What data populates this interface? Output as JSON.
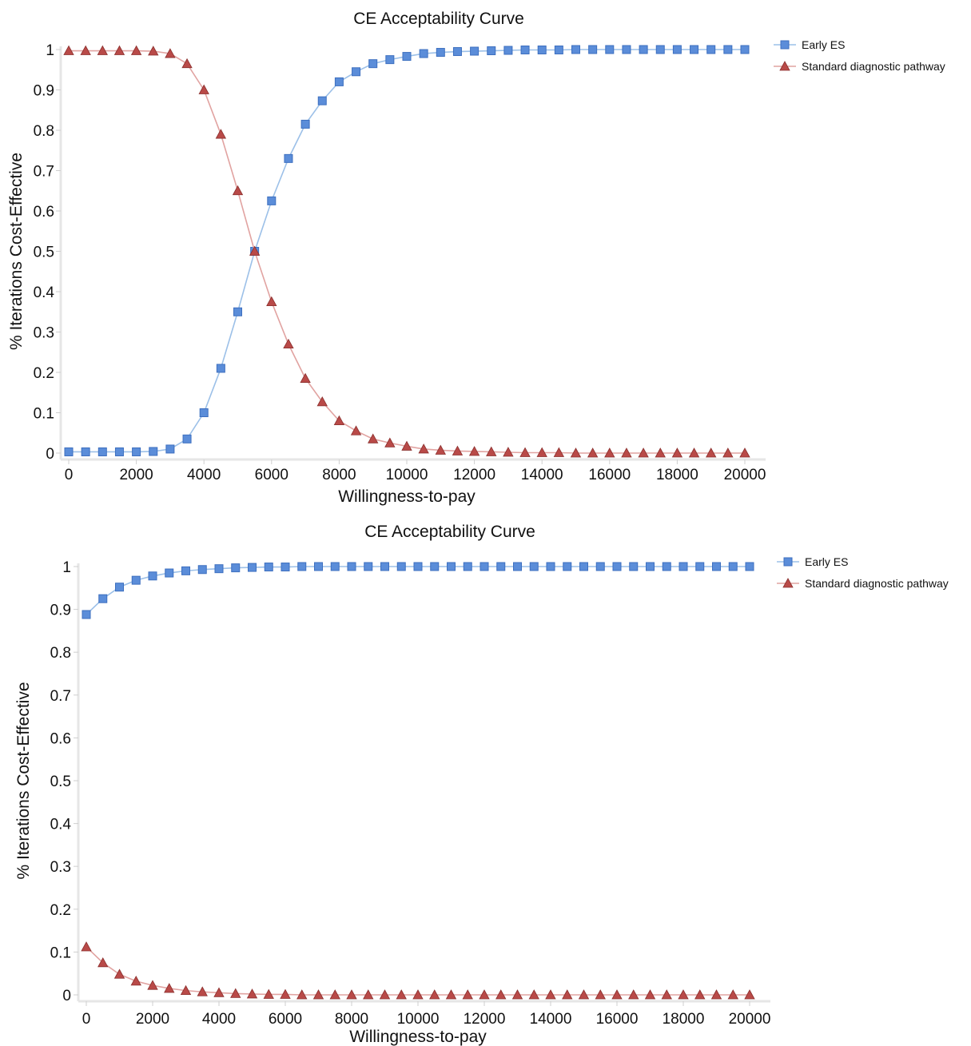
{
  "chart_data": [
    {
      "type": "line",
      "title": "CE Acceptability Curve",
      "xlabel": "Willingness-to-pay",
      "ylabel": "% Iterations Cost-Effective",
      "xlim": [
        0,
        20000
      ],
      "ylim": [
        0,
        1
      ],
      "x_ticks": [
        0,
        2000,
        4000,
        6000,
        8000,
        10000,
        12000,
        14000,
        16000,
        18000,
        20000
      ],
      "y_ticks": [
        0,
        0.1,
        0.2,
        0.3,
        0.4,
        0.5,
        0.6,
        0.7,
        0.8,
        0.9,
        1
      ],
      "y_tick_labels": [
        "0",
        "0.1",
        "0.2",
        "0.3",
        "0.4",
        "0.5",
        "0.6",
        "0.7",
        "0.8",
        "0.9",
        "1"
      ],
      "grid": false,
      "legend_position": "top-right",
      "x": [
        0,
        500,
        1000,
        1500,
        2000,
        2500,
        3000,
        3500,
        4000,
        4500,
        5000,
        5500,
        6000,
        6500,
        7000,
        7500,
        8000,
        8500,
        9000,
        9500,
        10000,
        10500,
        11000,
        11500,
        12000,
        12500,
        13000,
        13500,
        14000,
        14500,
        15000,
        15500,
        16000,
        16500,
        17000,
        17500,
        18000,
        18500,
        19000,
        19500,
        20000
      ],
      "series": [
        {
          "name": "Early ES",
          "marker": "square",
          "color": "#5b8dd9",
          "line_color": "#9cc0e8",
          "values": [
            0.003,
            0.003,
            0.003,
            0.003,
            0.003,
            0.004,
            0.01,
            0.035,
            0.1,
            0.21,
            0.35,
            0.5,
            0.625,
            0.73,
            0.815,
            0.873,
            0.92,
            0.945,
            0.965,
            0.975,
            0.983,
            0.99,
            0.993,
            0.995,
            0.996,
            0.997,
            0.998,
            0.999,
            0.999,
            0.999,
            1,
            1,
            1,
            1,
            1,
            1,
            1,
            1,
            1,
            1,
            1
          ]
        },
        {
          "name": "Standard diagnostic pathway",
          "marker": "triangle",
          "color": "#b94a48",
          "line_color": "#e1a3a1",
          "values": [
            0.997,
            0.997,
            0.997,
            0.997,
            0.997,
            0.996,
            0.99,
            0.965,
            0.9,
            0.79,
            0.65,
            0.5,
            0.375,
            0.27,
            0.185,
            0.127,
            0.08,
            0.055,
            0.035,
            0.025,
            0.017,
            0.01,
            0.007,
            0.005,
            0.004,
            0.003,
            0.002,
            0.001,
            0.001,
            0.001,
            0,
            0,
            0,
            0,
            0,
            0,
            0,
            0,
            0,
            0,
            0
          ]
        }
      ]
    },
    {
      "type": "line",
      "title": "CE Acceptability Curve",
      "xlabel": "Willingness-to-pay",
      "ylabel": "% Iterations Cost-Effective",
      "xlim": [
        0,
        20000
      ],
      "ylim": [
        0,
        1
      ],
      "x_ticks": [
        0,
        2000,
        4000,
        6000,
        8000,
        10000,
        12000,
        14000,
        16000,
        18000,
        20000
      ],
      "y_ticks": [
        0,
        0.1,
        0.2,
        0.3,
        0.4,
        0.5,
        0.6,
        0.7,
        0.8,
        0.9,
        1
      ],
      "y_tick_labels": [
        "0",
        "0.1",
        "0.2",
        "0.3",
        "0.4",
        "0.5",
        "0.6",
        "0.7",
        "0.8",
        "0.9",
        "1"
      ],
      "grid": false,
      "legend_position": "top-right",
      "x": [
        0,
        500,
        1000,
        1500,
        2000,
        2500,
        3000,
        3500,
        4000,
        4500,
        5000,
        5500,
        6000,
        6500,
        7000,
        7500,
        8000,
        8500,
        9000,
        9500,
        10000,
        10500,
        11000,
        11500,
        12000,
        12500,
        13000,
        13500,
        14000,
        14500,
        15000,
        15500,
        16000,
        16500,
        17000,
        17500,
        18000,
        18500,
        19000,
        19500,
        20000
      ],
      "series": [
        {
          "name": "Early ES",
          "marker": "square",
          "color": "#5b8dd9",
          "line_color": "#9cc0e8",
          "values": [
            0.888,
            0.925,
            0.952,
            0.968,
            0.978,
            0.985,
            0.99,
            0.993,
            0.995,
            0.997,
            0.998,
            0.999,
            0.999,
            1,
            1,
            1,
            1,
            1,
            1,
            1,
            1,
            1,
            1,
            1,
            1,
            1,
            1,
            1,
            1,
            1,
            1,
            1,
            1,
            1,
            1,
            1,
            1,
            1,
            1,
            1,
            1
          ]
        },
        {
          "name": "Standard diagnostic pathway",
          "marker": "triangle",
          "color": "#b94a48",
          "line_color": "#e1a3a1",
          "values": [
            0.112,
            0.075,
            0.048,
            0.032,
            0.022,
            0.015,
            0.01,
            0.007,
            0.005,
            0.003,
            0.002,
            0.001,
            0.001,
            0,
            0,
            0,
            0,
            0,
            0,
            0,
            0,
            0,
            0,
            0,
            0,
            0,
            0,
            0,
            0,
            0,
            0,
            0,
            0,
            0,
            0,
            0,
            0,
            0,
            0,
            0,
            0
          ]
        }
      ]
    }
  ]
}
